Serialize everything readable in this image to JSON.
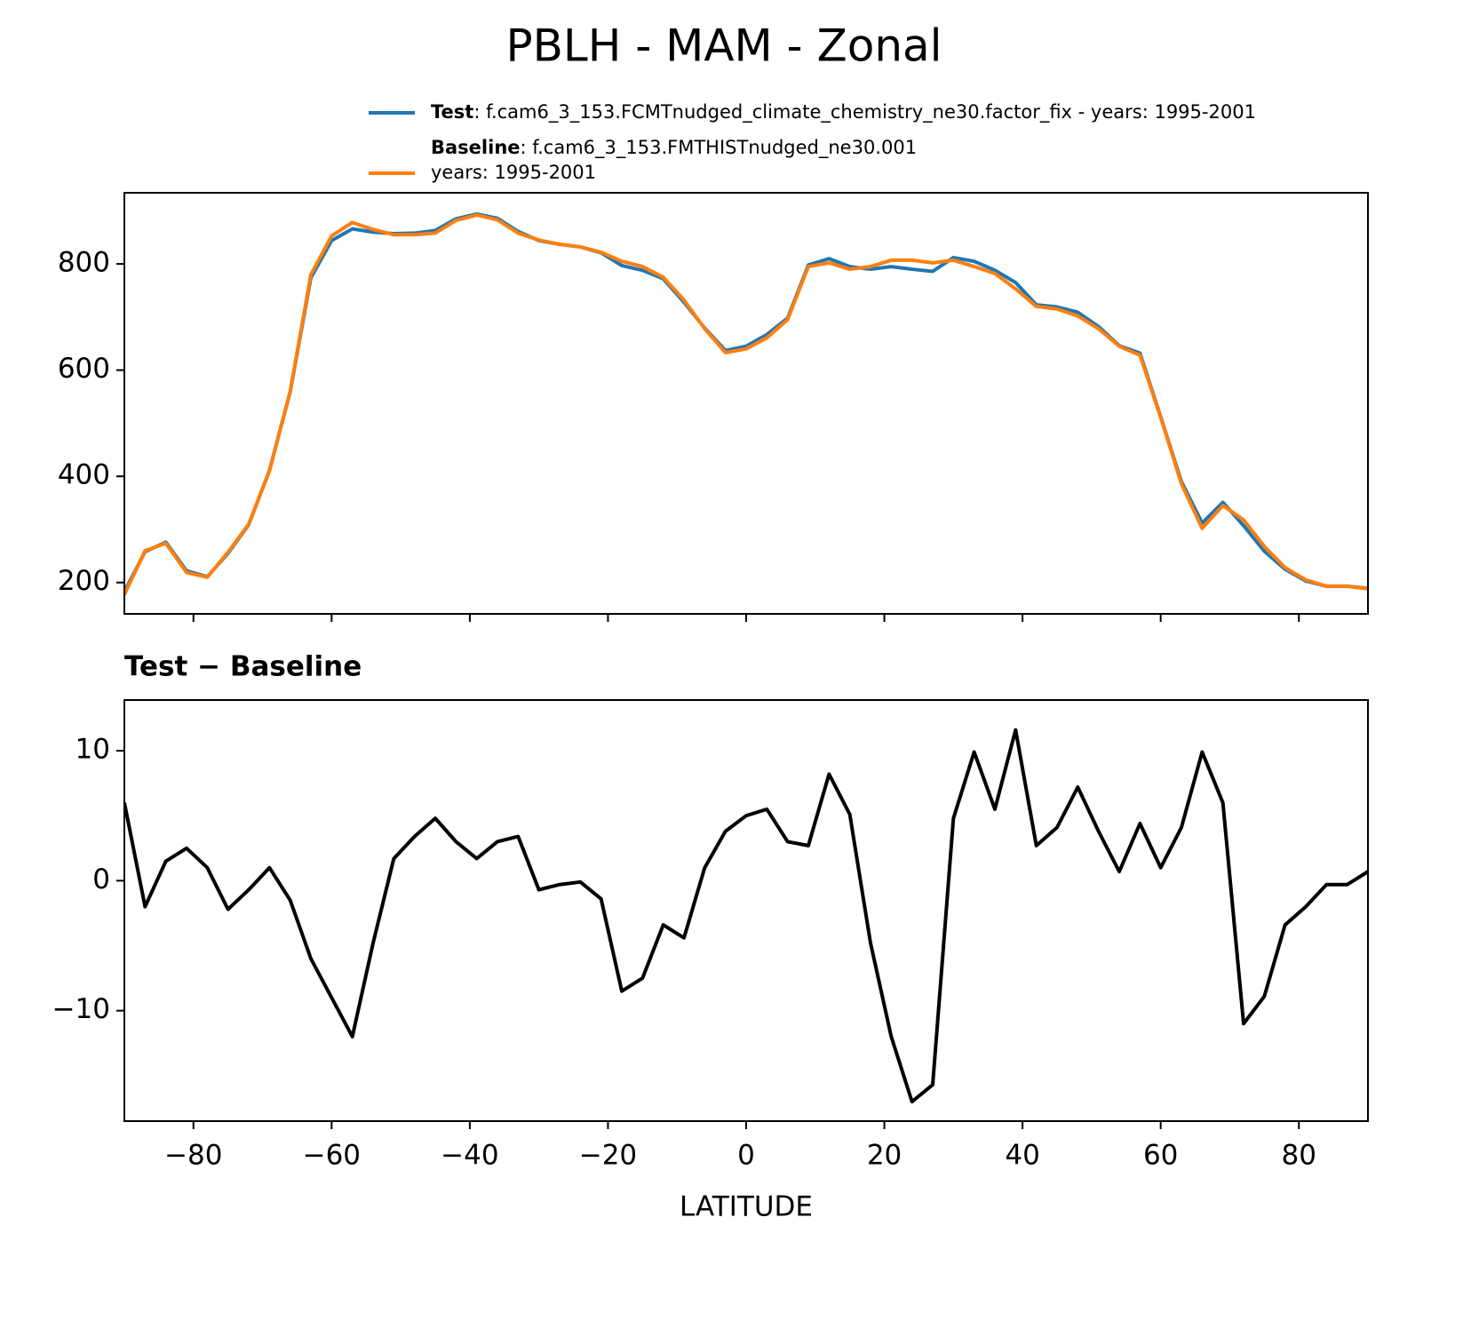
{
  "title": "PBLH - MAM - Zonal",
  "chart_data": [
    {
      "type": "line",
      "x": [
        -90,
        -87,
        -84,
        -81,
        -78,
        -75,
        -72,
        -69,
        -66,
        -63,
        -60,
        -57,
        -54,
        -51,
        -48,
        -45,
        -42,
        -39,
        -36,
        -33,
        -30,
        -27,
        -24,
        -21,
        -18,
        -15,
        -12,
        -9,
        -6,
        -3,
        0,
        3,
        6,
        9,
        12,
        15,
        18,
        21,
        24,
        27,
        30,
        33,
        36,
        39,
        42,
        45,
        48,
        51,
        54,
        57,
        60,
        63,
        66,
        69,
        72,
        75,
        78,
        81,
        84,
        87,
        90
      ],
      "series": [
        {
          "name": "Test",
          "label_lines": [
            ": f.cam6_3_153.FCMTnudged_climate_chemistry_ne30.factor_fix - years: 1995-2001"
          ],
          "color": "#1f77b4",
          "values": [
            183,
            258,
            276,
            222,
            211,
            255,
            309,
            411,
            559,
            774,
            844,
            866,
            860,
            857,
            858,
            863,
            885,
            894,
            886,
            861,
            844,
            837,
            832,
            821,
            797,
            788,
            772,
            728,
            679,
            637,
            645,
            667,
            698,
            798,
            810,
            795,
            790,
            795,
            790,
            786,
            812,
            805,
            788,
            765,
            723,
            719,
            709,
            682,
            646,
            632,
            512,
            390,
            312,
            351,
            307,
            259,
            225,
            203,
            193,
            193,
            189
          ]
        },
        {
          "name": "Baseline",
          "label_lines": [
            ": f.cam6_3_153.FMTHISTnudged_ne30.001",
            "years: 1995-2001"
          ],
          "color": "#ff7f0e",
          "values": [
            177,
            260,
            274,
            219,
            210,
            257,
            310,
            410,
            560,
            780,
            853,
            878,
            865,
            855,
            855,
            858,
            882,
            892,
            883,
            858,
            845,
            837,
            832,
            822,
            805,
            795,
            775,
            732,
            678,
            633,
            640,
            661,
            695,
            795,
            802,
            790,
            795,
            807,
            807,
            802,
            807,
            795,
            782,
            753,
            720,
            715,
            702,
            678,
            645,
            628,
            511,
            386,
            302,
            345,
            318,
            268,
            228,
            205,
            193,
            193,
            188
          ]
        }
      ],
      "xlim": [
        -90,
        90
      ],
      "xticks": [
        -80,
        -60,
        -40,
        -20,
        0,
        20,
        40,
        60,
        80
      ],
      "ylim": [
        141,
        934
      ],
      "yticks": [
        200,
        400,
        600,
        800
      ]
    },
    {
      "type": "line",
      "title": "Test − Baseline",
      "xlabel": "LATITUDE",
      "x": [
        -90,
        -87,
        -84,
        -81,
        -78,
        -75,
        -72,
        -69,
        -66,
        -63,
        -60,
        -57,
        -54,
        -51,
        -48,
        -45,
        -42,
        -39,
        -36,
        -33,
        -30,
        -27,
        -24,
        -21,
        -18,
        -15,
        -12,
        -9,
        -6,
        -3,
        0,
        3,
        6,
        9,
        12,
        15,
        18,
        21,
        24,
        27,
        30,
        33,
        36,
        39,
        42,
        45,
        48,
        51,
        54,
        57,
        60,
        63,
        66,
        69,
        72,
        75,
        78,
        81,
        84,
        87,
        90
      ],
      "series": [
        {
          "color": "#000000",
          "values": [
            6,
            -2,
            1.5,
            2.5,
            1,
            -2.2,
            -0.7,
            1,
            -1.5,
            -6,
            -9,
            -12,
            -4.8,
            1.7,
            3.4,
            4.8,
            3,
            1.7,
            3,
            3.4,
            -0.7,
            -0.3,
            -0.1,
            -1.4,
            -8.5,
            -7.5,
            -3.4,
            -4.4,
            1,
            3.8,
            5,
            5.5,
            3,
            2.7,
            8.2,
            5.1,
            -4.8,
            -12,
            -17,
            -15.7,
            4.8,
            9.9,
            5.5,
            11.6,
            2.7,
            4.1,
            7.2,
            3.8,
            0.7,
            4.4,
            1,
            4.1,
            9.9,
            6,
            -11,
            -8.9,
            -3.4,
            -2,
            -0.3,
            -0.3,
            0.7
          ]
        }
      ],
      "xlim": [
        -90,
        90
      ],
      "xticks": [
        {
          "value": -80,
          "label": "−80"
        },
        {
          "value": -60,
          "label": "−60"
        },
        {
          "value": -40,
          "label": "−40"
        },
        {
          "value": -20,
          "label": "−20"
        },
        0,
        20,
        40,
        60,
        80
      ],
      "ylim": [
        -18.5,
        13.9
      ],
      "yticks": [
        {
          "value": -10,
          "label": "−10"
        },
        0,
        10
      ]
    }
  ]
}
